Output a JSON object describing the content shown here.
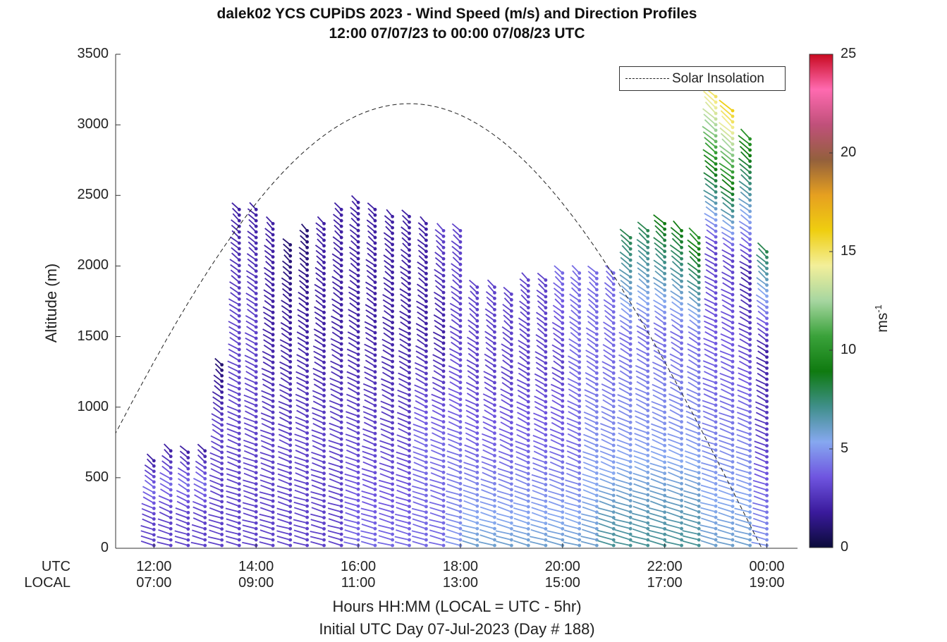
{
  "chart_data": {
    "type": "wind-barb-profile",
    "title": "dalek02 YCS CUPiDS 2023 - Wind Speed (m/s) and Direction Profiles",
    "subtitle": "12:00 07/07/23 to 00:00 07/08/23  UTC",
    "ylabel": "Altitude (m)",
    "xlabel": "Hours HH:MM  (LOCAL = UTC - 5hr)",
    "xlabel2": "Initial UTC Day 07-Jul-2023 (Day # 188)",
    "ylim": [
      0,
      3500
    ],
    "yticks": [
      "0",
      "500",
      "1000",
      "1500",
      "2000",
      "2500",
      "3000",
      "3500"
    ],
    "x_row_labels": {
      "utc": "UTC",
      "local": "LOCAL"
    },
    "xticks_utc": [
      "12:00",
      "14:00",
      "16:00",
      "18:00",
      "20:00",
      "22:00",
      "00:00"
    ],
    "xticks_local": [
      "07:00",
      "09:00",
      "11:00",
      "13:00",
      "15:00",
      "17:00",
      "19:00"
    ],
    "x_range_hours": [
      11.25,
      24.6
    ],
    "legend": {
      "label": "Solar Insolation",
      "placement": "top-right"
    },
    "colorbar": {
      "label": "ms",
      "label_exponent": "-1",
      "range": [
        0,
        25
      ],
      "ticks": [
        "0",
        "5",
        "10",
        "15",
        "20",
        "25"
      ],
      "stops": [
        "#0b0b3a",
        "#3a1a9c",
        "#6f55e0",
        "#86a8f0",
        "#3f8f8a",
        "#0f7a10",
        "#3aa23a",
        "#a6d6a0",
        "#f3ef9a",
        "#efce10",
        "#e6a020",
        "#93603c",
        "#c0507a",
        "#ff6ab0",
        "#c80a20"
      ]
    },
    "solar_insolation_peak": {
      "hour": 17.0,
      "altitude": 3150
    },
    "profiles": [
      {
        "hour": 12.0,
        "top": 620,
        "speed": [
          3,
          3,
          4,
          2
        ]
      },
      {
        "hour": 12.33,
        "top": 690,
        "speed": [
          3,
          3,
          4,
          2
        ]
      },
      {
        "hour": 12.67,
        "top": 680,
        "speed": [
          3,
          3,
          4,
          2
        ]
      },
      {
        "hour": 13.0,
        "top": 690,
        "speed": [
          3,
          3,
          4,
          2
        ]
      },
      {
        "hour": 13.33,
        "top": 1300,
        "speed": [
          3,
          3,
          3,
          1
        ]
      },
      {
        "hour": 13.67,
        "top": 2400,
        "speed": [
          3,
          3,
          3,
          2
        ]
      },
      {
        "hour": 14.0,
        "top": 2400,
        "speed": [
          3,
          3,
          3,
          2
        ]
      },
      {
        "hour": 14.33,
        "top": 2300,
        "speed": [
          3,
          3,
          2,
          2
        ]
      },
      {
        "hour": 14.67,
        "top": 2150,
        "speed": [
          3,
          3,
          2,
          1
        ]
      },
      {
        "hour": 15.0,
        "top": 2250,
        "speed": [
          3,
          3,
          2,
          1
        ]
      },
      {
        "hour": 15.33,
        "top": 2300,
        "speed": [
          3,
          3,
          2,
          2
        ]
      },
      {
        "hour": 15.67,
        "top": 2400,
        "speed": [
          3,
          3,
          2,
          2
        ]
      },
      {
        "hour": 16.0,
        "top": 2450,
        "speed": [
          4,
          3,
          2,
          2
        ]
      },
      {
        "hour": 16.33,
        "top": 2400,
        "speed": [
          4,
          3,
          2,
          2
        ]
      },
      {
        "hour": 16.67,
        "top": 2350,
        "speed": [
          4,
          3,
          2,
          2
        ]
      },
      {
        "hour": 17.0,
        "top": 2350,
        "speed": [
          4,
          3,
          2,
          2
        ]
      },
      {
        "hour": 17.33,
        "top": 2300,
        "speed": [
          4,
          4,
          2,
          2
        ]
      },
      {
        "hour": 17.67,
        "top": 2250,
        "speed": [
          4,
          4,
          2,
          3
        ]
      },
      {
        "hour": 18.0,
        "top": 2250,
        "speed": [
          5,
          4,
          3,
          3
        ]
      },
      {
        "hour": 18.33,
        "top": 1850,
        "speed": [
          6,
          4,
          3,
          3
        ]
      },
      {
        "hour": 18.67,
        "top": 1850,
        "speed": [
          6,
          4,
          3,
          3
        ]
      },
      {
        "hour": 19.0,
        "top": 1800,
        "speed": [
          6,
          4,
          3,
          3
        ]
      },
      {
        "hour": 19.33,
        "top": 1900,
        "speed": [
          6,
          4,
          3,
          3
        ]
      },
      {
        "hour": 19.67,
        "top": 1900,
        "speed": [
          6,
          4,
          3,
          3
        ]
      },
      {
        "hour": 20.0,
        "top": 1950,
        "speed": [
          6,
          4,
          3,
          4
        ]
      },
      {
        "hour": 20.33,
        "top": 1950,
        "speed": [
          6,
          4,
          4,
          4
        ]
      },
      {
        "hour": 20.67,
        "top": 1950,
        "speed": [
          6,
          5,
          4,
          4
        ]
      },
      {
        "hour": 21.0,
        "top": 1950,
        "speed": [
          7,
          5,
          4,
          4
        ]
      },
      {
        "hour": 21.33,
        "top": 2200,
        "speed": [
          7,
          5,
          4,
          8
        ]
      },
      {
        "hour": 21.67,
        "top": 2250,
        "speed": [
          7,
          5,
          4,
          8
        ]
      },
      {
        "hour": 22.0,
        "top": 2300,
        "speed": [
          7,
          5,
          4,
          9
        ]
      },
      {
        "hour": 22.33,
        "top": 2250,
        "speed": [
          7,
          5,
          4,
          9
        ]
      },
      {
        "hour": 22.67,
        "top": 2200,
        "speed": [
          7,
          5,
          4,
          10
        ]
      },
      {
        "hour": 23.0,
        "top": 3200,
        "speed": [
          6,
          4,
          3,
          15
        ]
      },
      {
        "hour": 23.33,
        "top": 3100,
        "speed": [
          6,
          4,
          3,
          16
        ]
      },
      {
        "hour": 23.67,
        "top": 2900,
        "speed": [
          6,
          4,
          2,
          10
        ]
      },
      {
        "hour": 24.0,
        "top": 2100,
        "speed": [
          5,
          3,
          2,
          8
        ]
      }
    ]
  }
}
